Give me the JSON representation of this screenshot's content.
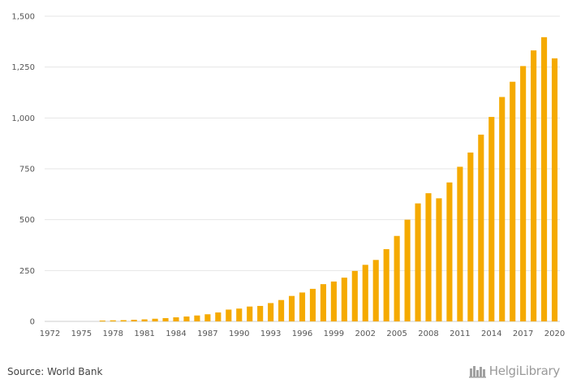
{
  "chart_data": {
    "type": "bar",
    "x": [
      1972,
      1973,
      1974,
      1975,
      1976,
      1977,
      1978,
      1979,
      1980,
      1981,
      1982,
      1983,
      1984,
      1985,
      1986,
      1987,
      1988,
      1989,
      1990,
      1991,
      1992,
      1993,
      1994,
      1995,
      1996,
      1997,
      1998,
      1999,
      2000,
      2001,
      2002,
      2003,
      2004,
      2005,
      2006,
      2007,
      2008,
      2009,
      2010,
      2011,
      2012,
      2013,
      2014,
      2015,
      2016,
      2017,
      2018,
      2019,
      2020
    ],
    "values": [
      0,
      0,
      0,
      0,
      0,
      4,
      5,
      6,
      8,
      10,
      13,
      16,
      20,
      24,
      29,
      35,
      44,
      58,
      63,
      73,
      76,
      90,
      105,
      125,
      142,
      160,
      183,
      196,
      215,
      248,
      278,
      302,
      355,
      420,
      500,
      580,
      630,
      605,
      683,
      760,
      830,
      918,
      1005,
      1103,
      1178,
      1255,
      1332,
      1397,
      1293
    ],
    "x_tick_labels": [
      "1972",
      "1975",
      "1978",
      "1981",
      "1984",
      "1987",
      "1990",
      "1993",
      "1996",
      "1999",
      "2002",
      "2005",
      "2008",
      "2011",
      "2014",
      "2017",
      "2020"
    ],
    "y_ticks": [
      "0",
      "250",
      "500",
      "750",
      "1,000",
      "1,250",
      "1,500"
    ],
    "y_tick_values": [
      0,
      250,
      500,
      750,
      1000,
      1250,
      1500
    ],
    "ylim": [
      0,
      1500
    ],
    "title": "",
    "xlabel": "",
    "ylabel": "",
    "grid": true,
    "bar_color": "#f5aa00",
    "grid_color": "#e6e6e6"
  },
  "footer": {
    "source": "Source: World Bank",
    "logo_text": "HelgiLibrary",
    "logo_icon": "helgi-library-icon"
  }
}
